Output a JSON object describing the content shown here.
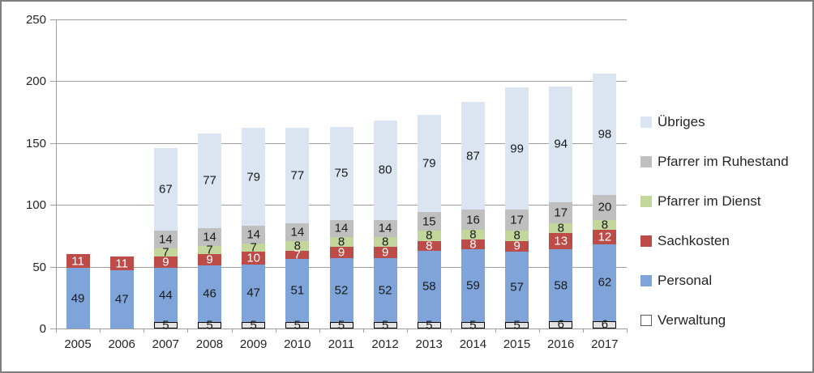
{
  "chart_data": {
    "type": "bar",
    "stacked": true,
    "title": "",
    "xlabel": "",
    "ylabel": "",
    "grid": true,
    "legend_position": "right",
    "categories": [
      "2005",
      "2006",
      "2007",
      "2008",
      "2009",
      "2010",
      "2011",
      "2012",
      "2013",
      "2014",
      "2015",
      "2016",
      "2017"
    ],
    "y_axis": {
      "min": 0,
      "max": 250,
      "step": 50,
      "ticks": [
        "0",
        "50",
        "100",
        "150",
        "200",
        "250"
      ]
    },
    "series": [
      {
        "name": "Verwaltung",
        "color": "#e3e3e3",
        "border_color": "#000000",
        "label_color": "#1a1a1a",
        "legend_swatch_color": "#ffffff",
        "legend_swatch_border": "#595959",
        "values": [
          0,
          0,
          5,
          5,
          5,
          5,
          5,
          5,
          5,
          5,
          5,
          6,
          6
        ]
      },
      {
        "name": "Personal",
        "color": "#7ea4da",
        "label_color": "#1a1a1a",
        "values": [
          49,
          47,
          44,
          46,
          47,
          51,
          52,
          52,
          58,
          59,
          57,
          58,
          62
        ]
      },
      {
        "name": "Sachkosten",
        "color": "#bd4b48",
        "label_color": "#ffffff",
        "values": [
          11,
          11,
          9,
          9,
          10,
          7,
          9,
          9,
          8,
          8,
          9,
          13,
          12
        ]
      },
      {
        "name": "Pfarrer im Dienst",
        "color": "#c3d69b",
        "label_color": "#1a1a1a",
        "values": [
          0,
          0,
          7,
          7,
          7,
          8,
          8,
          8,
          8,
          8,
          8,
          8,
          8
        ]
      },
      {
        "name": "Pfarrer im Ruhestand",
        "color": "#bfbfbf",
        "label_color": "#1a1a1a",
        "values": [
          0,
          0,
          14,
          14,
          14,
          14,
          14,
          14,
          15,
          16,
          17,
          17,
          20
        ]
      },
      {
        "name": "Übriges",
        "color": "#dbe5f1",
        "label_color": "#1a1a1a",
        "values": [
          0,
          0,
          67,
          77,
          79,
          77,
          75,
          80,
          79,
          87,
          99,
          94,
          98
        ]
      }
    ]
  },
  "colors": {
    "frame_border": "#7f7f7f",
    "gridline": "#9d9d9d",
    "axis": "#9d9d9d",
    "text": "#262626",
    "background": "#ffffff"
  }
}
